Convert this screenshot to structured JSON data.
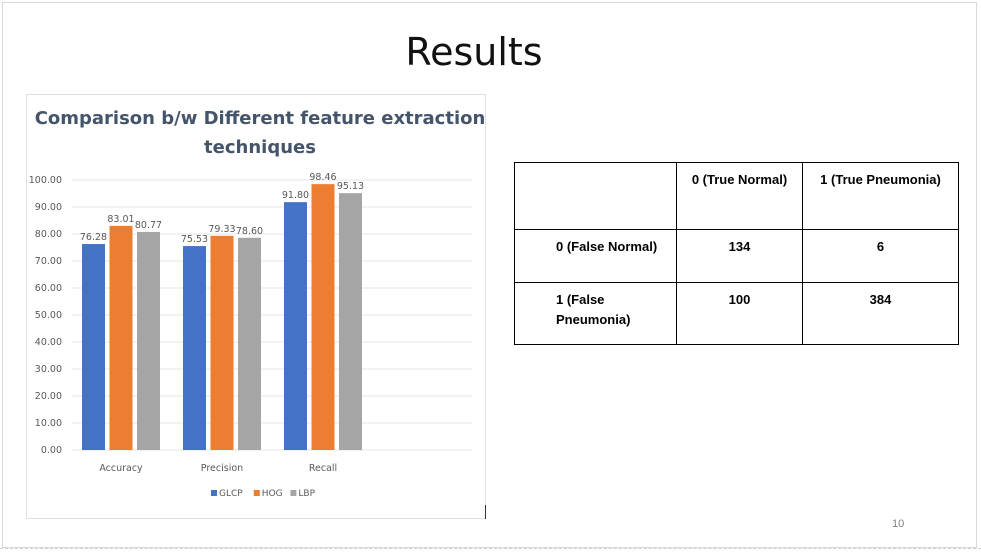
{
  "slide": {
    "title": "Results",
    "page_number": "10"
  },
  "chart_data": {
    "type": "bar",
    "title": "Comparison b/w Different feature extraction techniques",
    "categories": [
      "Accuracy",
      "Precision",
      "Recall"
    ],
    "series": [
      {
        "name": "GLCP",
        "color": "#4472c4",
        "values": [
          76.28,
          75.53,
          91.8
        ]
      },
      {
        "name": "HOG",
        "color": "#ed7d31",
        "values": [
          83.01,
          79.33,
          98.46
        ]
      },
      {
        "name": "LBP",
        "color": "#a5a5a5",
        "values": [
          80.77,
          78.6,
          95.13
        ]
      }
    ],
    "ylim": [
      0,
      100
    ],
    "yticks": [
      "0.00",
      "10.00",
      "20.00",
      "30.00",
      "40.00",
      "50.00",
      "60.00",
      "70.00",
      "80.00",
      "90.00",
      "100.00"
    ],
    "grid": true,
    "legend_position": "bottom"
  },
  "matrix": {
    "header": [
      "",
      "0 (True Normal)",
      "1 (True Pneumonia)"
    ],
    "rows": [
      {
        "label": "0 (False Normal)",
        "values": [
          "134",
          "6"
        ]
      },
      {
        "label": "1 (False Pneumonia)",
        "values": [
          "100",
          "384"
        ]
      }
    ]
  }
}
